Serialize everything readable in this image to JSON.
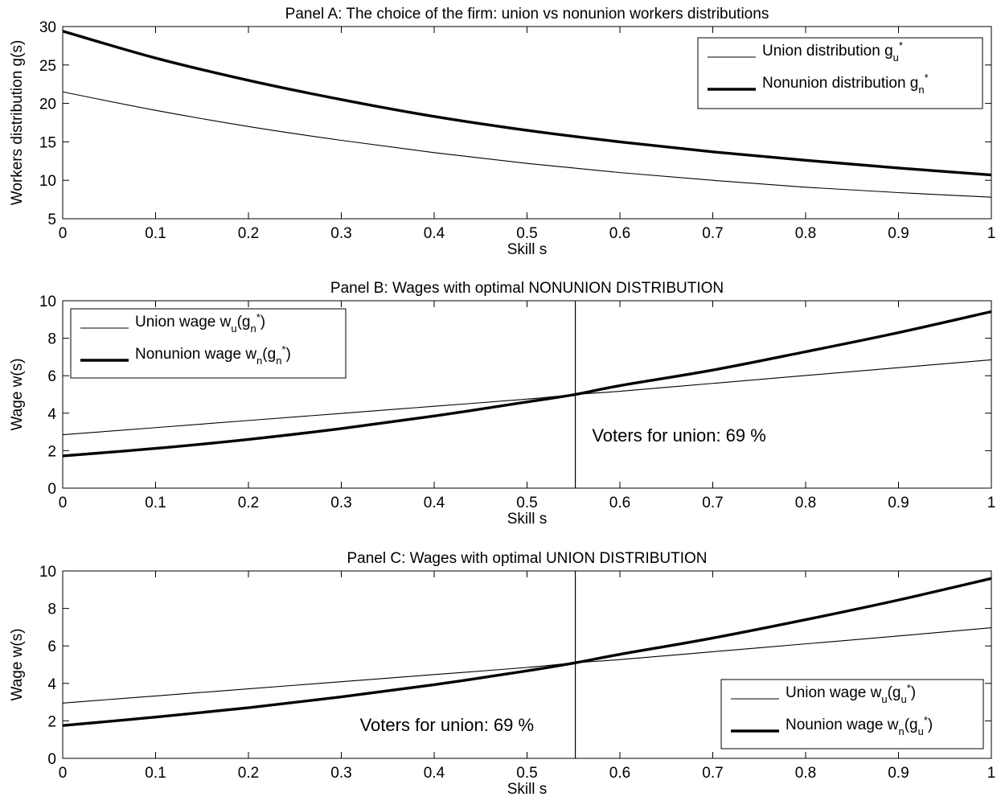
{
  "chart_data": [
    {
      "type": "line",
      "title": "Panel A: The choice of the firm: union vs nonunion workers distributions",
      "xlabel": "Skill s",
      "ylabel": "Workers distribution g(s)",
      "xlim": [
        0,
        1
      ],
      "ylim": [
        5,
        30
      ],
      "xticks": [
        0,
        0.1,
        0.2,
        0.3,
        0.4,
        0.5,
        0.6,
        0.7,
        0.8,
        0.9,
        1
      ],
      "xtick_labels": [
        "0",
        "0.1",
        "0.2",
        "0.3",
        "0.4",
        "0.5",
        "0.6",
        "0.7",
        "0.8",
        "0.9",
        "1"
      ],
      "yticks": [
        5,
        10,
        15,
        20,
        25,
        30
      ],
      "ytick_labels": [
        "5",
        "10",
        "15",
        "20",
        "25",
        "30"
      ],
      "legend_position": "top-right",
      "x": [
        0,
        0.1,
        0.2,
        0.3,
        0.4,
        0.5,
        0.6,
        0.7,
        0.8,
        0.9,
        1
      ],
      "series": [
        {
          "legend": {
            "main": "Union distribution g",
            "sub": "u",
            "sup": "*"
          },
          "style": "thin",
          "values": [
            21.5,
            19.1,
            17.0,
            15.2,
            13.6,
            12.2,
            11.0,
            10.0,
            9.1,
            8.4,
            7.8
          ]
        },
        {
          "legend": {
            "main": "Nonunion distribution g",
            "sub": "n",
            "sup": "*"
          },
          "style": "thick",
          "values": [
            29.4,
            25.9,
            23.0,
            20.5,
            18.3,
            16.5,
            15.0,
            13.7,
            12.6,
            11.6,
            10.7
          ]
        }
      ]
    },
    {
      "type": "line",
      "title": "Panel B: Wages with optimal NONUNION DISTRIBUTION",
      "xlabel": "Skill s",
      "ylabel": "Wage w(s)",
      "xlim": [
        0,
        1
      ],
      "ylim": [
        0,
        10
      ],
      "xticks": [
        0,
        0.1,
        0.2,
        0.3,
        0.4,
        0.5,
        0.6,
        0.7,
        0.8,
        0.9,
        1
      ],
      "xtick_labels": [
        "0",
        "0.1",
        "0.2",
        "0.3",
        "0.4",
        "0.5",
        "0.6",
        "0.7",
        "0.8",
        "0.9",
        "1"
      ],
      "yticks": [
        0,
        2,
        4,
        6,
        8,
        10
      ],
      "ytick_labels": [
        "0",
        "2",
        "4",
        "6",
        "8",
        "10"
      ],
      "legend_position": "top-left",
      "vline_x": 0.552,
      "annotation": {
        "text": "Voters for union: 69 %",
        "x": 0.57,
        "y": 2.5
      },
      "x": [
        0,
        0.1,
        0.2,
        0.3,
        0.4,
        0.5,
        0.552,
        0.6,
        0.7,
        0.8,
        0.9,
        1
      ],
      "series": [
        {
          "legend": {
            "main": "Union wage w",
            "sub": "u",
            "paren_main": "(g",
            "paren_sub": "n",
            "paren_sup": "*",
            "close": ")"
          },
          "style": "thin",
          "values": [
            2.85,
            3.23,
            3.61,
            3.99,
            4.37,
            4.75,
            5.0,
            5.17,
            5.59,
            6.01,
            6.43,
            6.85
          ]
        },
        {
          "legend": {
            "main": "Nonunion wage w",
            "sub": "n",
            "paren_main": "(g",
            "paren_sub": "n",
            "paren_sup": "*",
            "close": ")"
          },
          "style": "thick",
          "values": [
            1.72,
            2.12,
            2.6,
            3.18,
            3.85,
            4.6,
            5.0,
            5.47,
            6.3,
            7.28,
            8.3,
            9.42
          ]
        }
      ]
    },
    {
      "type": "line",
      "title": "Panel C: Wages with optimal UNION DISTRIBUTION",
      "xlabel": "Skill s",
      "ylabel": "Wage w(s)",
      "xlim": [
        0,
        1
      ],
      "ylim": [
        0,
        10
      ],
      "xticks": [
        0,
        0.1,
        0.2,
        0.3,
        0.4,
        0.5,
        0.6,
        0.7,
        0.8,
        0.9,
        1
      ],
      "xtick_labels": [
        "0",
        "0.1",
        "0.2",
        "0.3",
        "0.4",
        "0.5",
        "0.6",
        "0.7",
        "0.8",
        "0.9",
        "1"
      ],
      "yticks": [
        0,
        2,
        4,
        6,
        8,
        10
      ],
      "ytick_labels": [
        "0",
        "2",
        "4",
        "6",
        "8",
        "10"
      ],
      "legend_position": "bottom-right",
      "vline_x": 0.552,
      "annotation": {
        "text": "Voters for union: 69 %",
        "x": 0.32,
        "y": 1.45
      },
      "x": [
        0,
        0.1,
        0.2,
        0.3,
        0.4,
        0.5,
        0.552,
        0.6,
        0.7,
        0.8,
        0.9,
        1
      ],
      "series": [
        {
          "legend": {
            "main": "Union wage w",
            "sub": "u",
            "paren_main": "(g",
            "paren_sub": "u",
            "paren_sup": "*",
            "close": ")"
          },
          "style": "thin",
          "values": [
            2.95,
            3.33,
            3.71,
            4.09,
            4.47,
            4.85,
            5.1,
            5.27,
            5.69,
            6.11,
            6.53,
            6.97
          ]
        },
        {
          "legend": {
            "main": "Nounion wage w",
            "sub": "n",
            "paren_main": "(g",
            "paren_sub": "u",
            "paren_sup": "*",
            "close": ")"
          },
          "style": "thick",
          "values": [
            1.75,
            2.2,
            2.7,
            3.28,
            3.93,
            4.67,
            5.1,
            5.55,
            6.42,
            7.4,
            8.45,
            9.6
          ]
        }
      ]
    }
  ]
}
